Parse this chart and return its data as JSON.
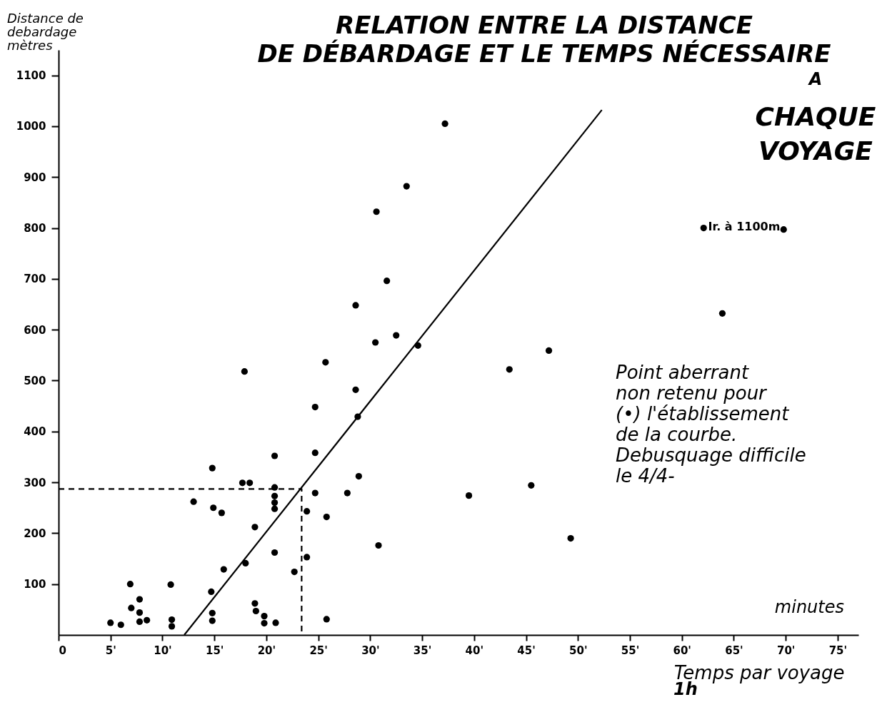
{
  "chart_data": {
    "type": "scatter",
    "title": "RELATION ENTRE LA DISTANCE\nDE DÉBARDAGE ET LE TEMPS NÉCESSAIRE\nA\nCHAQUE\nVOYAGE",
    "xlabel": "Temps par voyage",
    "ylabel": "Distance de\ndebardage\nmètres",
    "xlim": [
      0,
      77
    ],
    "ylim": [
      0,
      1150
    ],
    "xticks": [
      0,
      {
        "value": 5,
        "label": "5'"
      },
      {
        "value": 10,
        "label": "10'"
      },
      {
        "value": 15,
        "label": "15'"
      },
      {
        "value": 20,
        "label": "20'"
      },
      {
        "value": 25,
        "label": "25'"
      },
      {
        "value": 30,
        "label": "30'"
      },
      {
        "value": 35,
        "label": "35'"
      },
      {
        "value": 40,
        "label": "40'"
      },
      {
        "value": 45,
        "label": "45'"
      },
      {
        "value": 50,
        "label": "50'"
      },
      {
        "value": 55,
        "label": "55'"
      },
      {
        "value": 60,
        "label": "60'"
      },
      {
        "value": 65,
        "label": "65'"
      },
      {
        "value": 70,
        "label": "70'"
      },
      {
        "value": 75,
        "label": "75'"
      }
    ],
    "yticks": [
      100,
      200,
      300,
      400,
      500,
      600,
      700,
      800,
      900,
      1000,
      1100
    ],
    "grid": false,
    "series": [
      {
        "marker": "circle",
        "color": "#000000",
        "x": [
          5.0,
          6.0,
          6.9,
          7.0,
          7.8,
          7.8,
          7.8,
          8.5,
          10.8,
          10.9,
          10.9,
          13.0,
          14.8,
          14.9,
          15.7,
          14.7,
          14.8,
          14.8,
          15.9,
          17.7,
          18.4,
          18.9,
          18.0,
          18.9,
          19.0,
          19.8,
          19.8,
          20.9,
          20.8,
          20.8,
          20.8,
          20.8,
          20.8,
          20.8,
          22.7,
          23.9,
          23.9,
          24.7,
          24.7,
          25.8,
          25.8,
          27.8,
          28.9,
          37.2,
          33.5,
          30.6,
          31.6,
          28.6,
          30.5,
          32.5,
          34.6,
          25.7,
          17.9,
          28.6,
          24.7,
          28.8,
          30.8,
          43.4,
          47.2,
          63.9,
          39.5,
          45.5,
          49.3,
          62.1,
          69.8
        ],
        "values": [
          24,
          20,
          100,
          53,
          70,
          44,
          26,
          29,
          99,
          30,
          17,
          262,
          328,
          250,
          240,
          85,
          43,
          28,
          129,
          299,
          299,
          212,
          141,
          62,
          47,
          37,
          23,
          24,
          352,
          290,
          273,
          260,
          248,
          162,
          124,
          243,
          153,
          358,
          279,
          232,
          31,
          279,
          312,
          1005,
          882,
          832,
          696,
          648,
          575,
          589,
          569,
          536,
          518,
          482,
          448,
          429,
          176,
          522,
          559,
          632,
          274,
          294,
          190,
          800,
          797
        ]
      },
      {
        "type": "line",
        "color": "#000000",
        "x": [
          12.1,
          52.3
        ],
        "values": [
          0,
          1032
        ]
      },
      {
        "type": "line",
        "color": "#000000",
        "line_style": "dashed",
        "x": [
          0,
          23.4,
          23.4
        ],
        "values": [
          287,
          287,
          0
        ]
      }
    ],
    "annotations": [
      "Ir. à 1100m",
      "Point aberrant\nnon retenu pour\n(•) l'établissement\nde la courbe.\nDebusquage difficile\nle 4/4-",
      "minutes",
      "1h"
    ]
  }
}
